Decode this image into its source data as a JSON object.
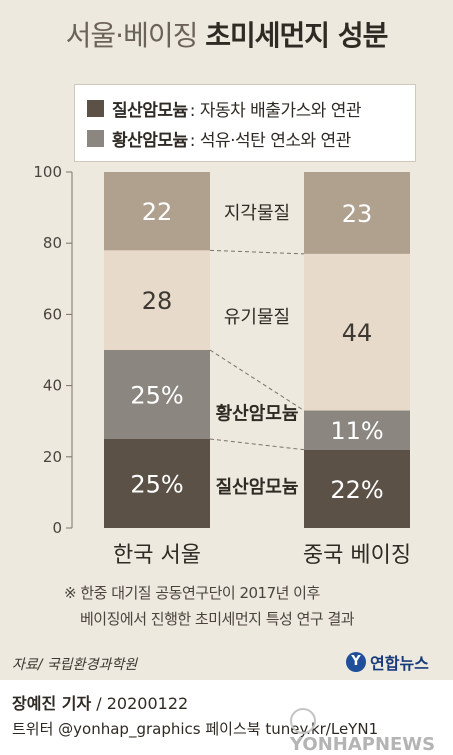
{
  "title": {
    "part1": "서울·베이징",
    "part2": "초미세먼지 성분"
  },
  "legend": [
    {
      "name": "질산암모늄",
      "desc": ": 자동차 배출가스와 연관",
      "color": "#5b5147"
    },
    {
      "name": "황산암모늄",
      "desc": ": 석유·석탄 연소와 연관",
      "color": "#8b8680"
    }
  ],
  "chart_data": {
    "type": "bar",
    "stacked": true,
    "categories": [
      "한국 서울",
      "중국 베이징"
    ],
    "ylim": [
      0,
      100
    ],
    "yticks": [
      0,
      20,
      40,
      60,
      80,
      100
    ],
    "series": [
      {
        "name": "질산암모늄",
        "values": [
          25,
          22
        ],
        "labels": [
          "25%",
          "22%"
        ],
        "color": "#5b5147",
        "text_color": "#ffffff"
      },
      {
        "name": "황산암모늄",
        "values": [
          25,
          11
        ],
        "labels": [
          "25%",
          "11%"
        ],
        "color": "#8b8680",
        "text_color": "#ffffff"
      },
      {
        "name": "유기물질",
        "values": [
          28,
          44
        ],
        "labels": [
          "28",
          "44"
        ],
        "color": "#e8dacb",
        "text_color": "#3d3832"
      },
      {
        "name": "지각물질",
        "values": [
          22,
          23
        ],
        "labels": [
          "22",
          "23"
        ],
        "color": "#b0a18f",
        "text_color": "#ffffff"
      }
    ],
    "middle_labels": [
      "질산암모늄",
      "황산암모늄",
      "유기물질",
      "지각물질"
    ]
  },
  "note": {
    "line1": "※ 한중 대기질 공동연구단이 2017년 이후",
    "line2": "베이징에서 진행한 초미세먼지 특성 연구 결과"
  },
  "source": "자료/ 국립환경과학원",
  "logo": "연합뉴스",
  "footer": {
    "reporter": "장예진 기자",
    "date": " / 20200122",
    "social": "트위터 @yonhap_graphics  페이스북 tuney.kr/LeYN1"
  },
  "watermark": "YONHAPNEWS"
}
